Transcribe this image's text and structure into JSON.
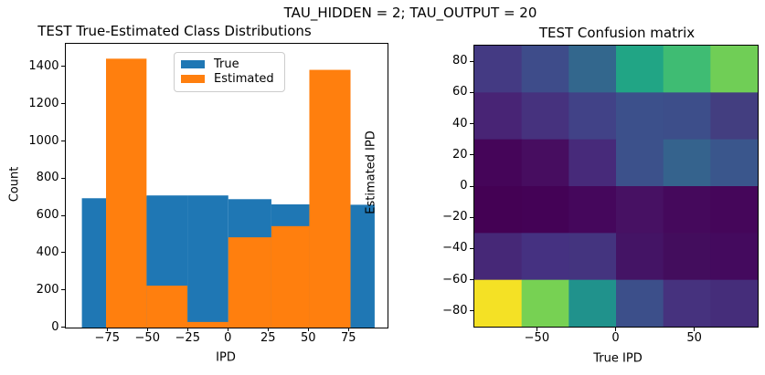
{
  "figure": {
    "suptitle": "TAU_HIDDEN = 2; TAU_OUTPUT = 20",
    "background_color": "#ffffff"
  },
  "chart_data": [
    {
      "id": "class_distributions",
      "type": "bar",
      "subtype": "overlaid_histogram",
      "title": "TEST True-Estimated Class Distributions",
      "xlabel": "IPD",
      "ylabel": "Count",
      "xlim": [
        -101,
        99
      ],
      "ylim": [
        0,
        1525
      ],
      "xticks": [
        -75,
        -50,
        -25,
        0,
        25,
        50,
        75
      ],
      "yticks": [
        0,
        200,
        400,
        600,
        800,
        1000,
        1200,
        1400
      ],
      "grid": false,
      "legend": {
        "position": "upper-left-inside",
        "entries": [
          {
            "label": "True",
            "color": "#1f77b4"
          },
          {
            "label": "Estimated",
            "color": "#ff7f0e"
          }
        ]
      },
      "series": [
        {
          "name": "True",
          "color": "#1f77b4",
          "bars": [
            {
              "x0": -91,
              "x1": -76,
              "count": 695
            },
            {
              "x0": -76,
              "x1": -50.8,
              "count": 705
            },
            {
              "x0": -50.8,
              "x1": -25.4,
              "count": 710
            },
            {
              "x0": -25.4,
              "x1": 0,
              "count": 710
            },
            {
              "x0": 0,
              "x1": 26.8,
              "count": 690
            },
            {
              "x0": 26.8,
              "x1": 50.4,
              "count": 662
            },
            {
              "x0": 50.4,
              "x1": 76,
              "count": 662
            },
            {
              "x0": 76,
              "x1": 91,
              "count": 660
            }
          ]
        },
        {
          "name": "Estimated",
          "color": "#ff7f0e",
          "bars": [
            {
              "x0": -76,
              "x1": -50.8,
              "count": 1445
            },
            {
              "x0": -50.8,
              "x1": -25.4,
              "count": 225
            },
            {
              "x0": -25.4,
              "x1": 0,
              "count": 30
            },
            {
              "x0": 0,
              "x1": 26.8,
              "count": 485
            },
            {
              "x0": 26.8,
              "x1": 50.4,
              "count": 545
            },
            {
              "x0": 50.4,
              "x1": 76,
              "count": 1385
            }
          ]
        }
      ]
    },
    {
      "id": "confusion_matrix",
      "type": "heatmap",
      "title": "TEST Confusion matrix",
      "xlabel": "True IPD",
      "ylabel": "Estimated IPD",
      "xlim": [
        -90,
        90
      ],
      "ylim": [
        -90,
        90
      ],
      "xticks": [
        -50,
        0,
        50
      ],
      "yticks": [
        80,
        60,
        40,
        20,
        0,
        -20,
        -40,
        -60,
        -80
      ],
      "colormap": "viridis",
      "n_rows": 6,
      "n_cols": 6,
      "row_edges_top_to_bottom": [
        90,
        60,
        30,
        0,
        -30,
        -60,
        -90
      ],
      "col_edges_left_to_right": [
        -90,
        -60,
        -30,
        0,
        30,
        60,
        90
      ],
      "cell_colors_rows_top_to_bottom": [
        [
          "#443a83",
          "#3e4c8a",
          "#33678d",
          "#21a585",
          "#3fbc73",
          "#70ce56"
        ],
        [
          "#482475",
          "#46327e",
          "#414287",
          "#3c508b",
          "#3d4e8a",
          "#433e80"
        ],
        [
          "#450559",
          "#470d60",
          "#472a7a",
          "#3c518b",
          "#35638d",
          "#3a568c"
        ],
        [
          "#440154",
          "#440256",
          "#45075c",
          "#471163",
          "#45095c",
          "#45065a"
        ],
        [
          "#462877",
          "#453181",
          "#44347f",
          "#441465",
          "#430d5d",
          "#440a5e"
        ],
        [
          "#f4e125",
          "#77d153",
          "#20928c",
          "#3c4f8a",
          "#46327e",
          "#452d7a"
        ]
      ]
    }
  ]
}
